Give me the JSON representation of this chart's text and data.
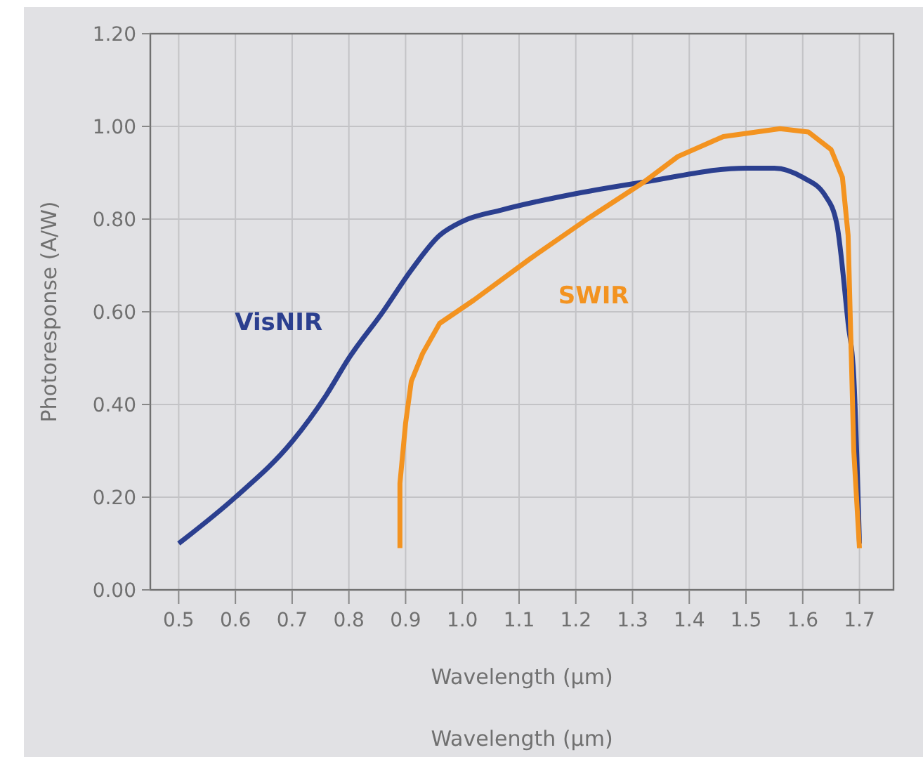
{
  "chart_data": {
    "type": "line",
    "xlabel": "Wavelength (µm)",
    "ylabel": "Photoresponse (A/W)",
    "xlim": [
      0.45,
      1.76
    ],
    "ylim": [
      0,
      1.2
    ],
    "xticks": [
      0.5,
      0.6,
      0.7,
      0.8,
      0.9,
      {
        "value": 1.0,
        "label": "1.0"
      },
      1.1,
      1.2,
      1.3,
      1.4,
      1.5,
      1.6,
      1.7
    ],
    "yticks": [
      {
        "value": 0,
        "label": "0.00"
      },
      {
        "value": 0.2,
        "label": "0.20"
      },
      {
        "value": 0.4,
        "label": "0.40"
      },
      {
        "value": 0.6,
        "label": "0.60"
      },
      {
        "value": 0.8,
        "label": "0.80"
      },
      {
        "value": 1.0,
        "label": "1.00"
      },
      {
        "value": 1.2,
        "label": "1.20"
      }
    ],
    "grid": true,
    "marker": "none",
    "line_style": "solid",
    "series": [
      {
        "name": "VisNIR",
        "color": "#2b3f8f",
        "x": [
          0.5,
          0.6,
          0.7,
          0.76,
          0.8,
          0.86,
          0.91,
          0.96,
          1.0,
          1.07,
          1.2,
          1.32,
          1.5,
          1.55,
          1.6,
          1.64,
          1.66,
          1.68,
          1.69,
          1.7
        ],
        "values": [
          0.1,
          0.2,
          0.32,
          0.42,
          0.5,
          0.6,
          0.69,
          0.765,
          0.795,
          0.82,
          0.855,
          0.88,
          0.91,
          0.91,
          0.89,
          0.85,
          0.79,
          0.575,
          0.46,
          0.1
        ]
      },
      {
        "name": "SWIR",
        "color": "#f39320",
        "x": [
          0.89,
          0.89,
          0.9,
          0.91,
          0.93,
          0.96,
          1.02,
          1.12,
          1.22,
          1.32,
          1.38,
          1.46,
          1.56,
          1.61,
          1.65,
          1.67,
          1.68,
          1.69,
          1.7
        ],
        "values": [
          0.09,
          0.23,
          0.36,
          0.45,
          0.51,
          0.575,
          0.625,
          0.715,
          0.8,
          0.88,
          0.935,
          0.978,
          0.995,
          0.988,
          0.95,
          0.89,
          0.765,
          0.3,
          0.09
        ]
      }
    ],
    "annotations": [
      "Wavelength (µm)"
    ]
  }
}
